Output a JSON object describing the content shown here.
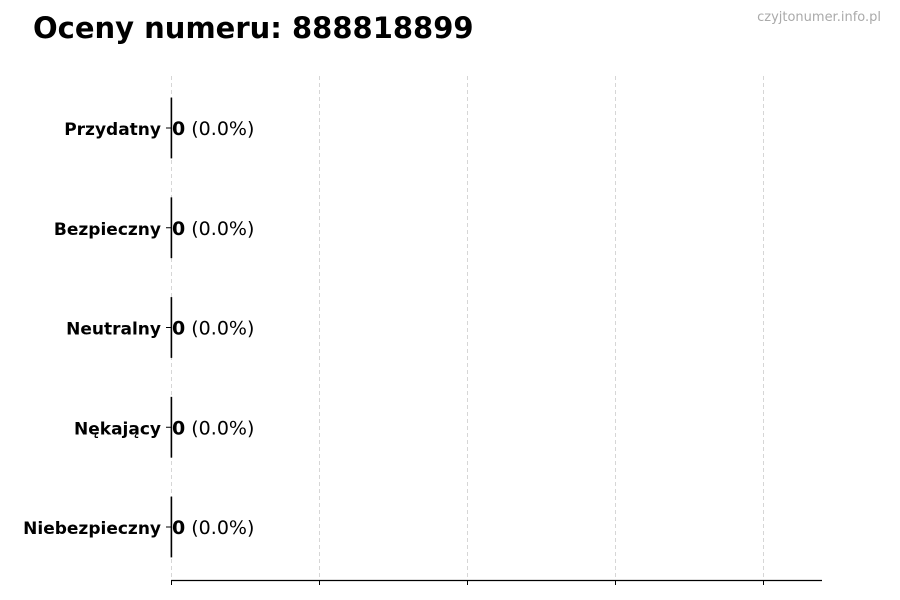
{
  "chart_data": {
    "type": "bar",
    "orientation": "horizontal",
    "title": "Oceny numeru: 888818899",
    "categories": [
      "Przydatny",
      "Bezpieczny",
      "Neutralny",
      "Nękający",
      "Niebezpieczny"
    ],
    "values": [
      0,
      0,
      0,
      0,
      0
    ],
    "data_labels": [
      {
        "count": "0",
        "percent": "(0.0%)"
      },
      {
        "count": "0",
        "percent": "(0.0%)"
      },
      {
        "count": "0",
        "percent": "(0.0%)"
      },
      {
        "count": "0",
        "percent": "(0.0%)"
      },
      {
        "count": "0",
        "percent": "(0.0%)"
      }
    ],
    "xlabel": "",
    "ylabel": "",
    "x_gridlines": 5,
    "grid": "x, dashed",
    "legend": "none",
    "bar_edge_color": "#000000",
    "grid_color": "#cccccc"
  },
  "watermark": "czyjtonumer.info.pl"
}
